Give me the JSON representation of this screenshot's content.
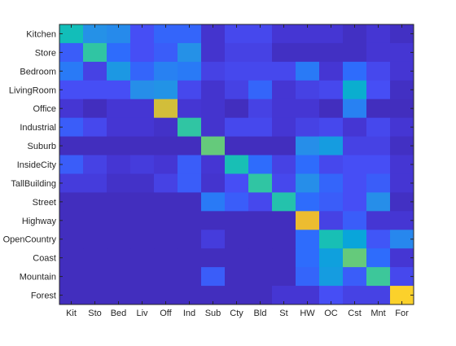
{
  "chart_data": {
    "type": "heatmap",
    "title": "",
    "xlabel": "",
    "ylabel": "",
    "row_labels": [
      "Kitchen",
      "Store",
      "Bedroom",
      "LivingRoom",
      "Office",
      "Industrial",
      "Suburb",
      "InsideCity",
      "TallBuilding",
      "Street",
      "Highway",
      "OpenCountry",
      "Coast",
      "Mountain",
      "Forest"
    ],
    "col_labels": [
      "Kit",
      "Sto",
      "Bed",
      "Liv",
      "Off",
      "Ind",
      "Sub",
      "Cty",
      "Bld",
      "St",
      "HW",
      "OC",
      "Cst",
      "Mnt",
      "For"
    ],
    "colormap": "parula",
    "value_range": [
      0,
      1
    ],
    "values": [
      [
        0.55,
        0.35,
        0.33,
        0.16,
        0.22,
        0.22,
        0.07,
        0.14,
        0.14,
        0.08,
        0.08,
        0.08,
        0.05,
        0.08,
        0.05
      ],
      [
        0.2,
        0.6,
        0.24,
        0.16,
        0.2,
        0.35,
        0.07,
        0.12,
        0.12,
        0.05,
        0.05,
        0.05,
        0.05,
        0.08,
        0.08
      ],
      [
        0.28,
        0.12,
        0.38,
        0.22,
        0.3,
        0.28,
        0.12,
        0.14,
        0.14,
        0.14,
        0.28,
        0.08,
        0.24,
        0.14,
        0.08
      ],
      [
        0.16,
        0.16,
        0.16,
        0.34,
        0.36,
        0.14,
        0.07,
        0.12,
        0.22,
        0.08,
        0.12,
        0.14,
        0.48,
        0.16,
        0.05
      ],
      [
        0.08,
        0.04,
        0.08,
        0.08,
        0.82,
        0.08,
        0.07,
        0.04,
        0.12,
        0.08,
        0.08,
        0.04,
        0.3,
        0.04,
        0.04
      ],
      [
        0.2,
        0.14,
        0.08,
        0.08,
        0.06,
        0.6,
        0.07,
        0.14,
        0.14,
        0.08,
        0.12,
        0.14,
        0.08,
        0.14,
        0.08
      ],
      [
        0.04,
        0.04,
        0.04,
        0.04,
        0.04,
        0.04,
        0.68,
        0.04,
        0.04,
        0.04,
        0.34,
        0.4,
        0.12,
        0.12,
        0.05
      ],
      [
        0.2,
        0.12,
        0.08,
        0.1,
        0.08,
        0.2,
        0.08,
        0.56,
        0.24,
        0.12,
        0.24,
        0.14,
        0.16,
        0.16,
        0.08
      ],
      [
        0.1,
        0.1,
        0.06,
        0.06,
        0.12,
        0.2,
        0.07,
        0.16,
        0.6,
        0.14,
        0.34,
        0.22,
        0.16,
        0.2,
        0.08
      ],
      [
        0.04,
        0.04,
        0.04,
        0.04,
        0.04,
        0.04,
        0.28,
        0.2,
        0.14,
        0.58,
        0.24,
        0.2,
        0.16,
        0.34,
        0.05
      ],
      [
        0.04,
        0.04,
        0.04,
        0.04,
        0.04,
        0.04,
        0.04,
        0.04,
        0.04,
        0.04,
        0.86,
        0.12,
        0.2,
        0.08,
        0.08
      ],
      [
        0.04,
        0.04,
        0.04,
        0.04,
        0.04,
        0.04,
        0.1,
        0.04,
        0.04,
        0.04,
        0.24,
        0.56,
        0.44,
        0.18,
        0.32
      ],
      [
        0.04,
        0.04,
        0.04,
        0.04,
        0.04,
        0.04,
        0.04,
        0.04,
        0.04,
        0.04,
        0.24,
        0.42,
        0.68,
        0.24,
        0.08
      ],
      [
        0.04,
        0.04,
        0.04,
        0.04,
        0.04,
        0.04,
        0.2,
        0.04,
        0.04,
        0.04,
        0.22,
        0.4,
        0.2,
        0.62,
        0.14
      ],
      [
        0.04,
        0.04,
        0.04,
        0.04,
        0.04,
        0.04,
        0.04,
        0.04,
        0.04,
        0.08,
        0.08,
        0.16,
        0.12,
        0.12,
        0.93
      ]
    ]
  }
}
